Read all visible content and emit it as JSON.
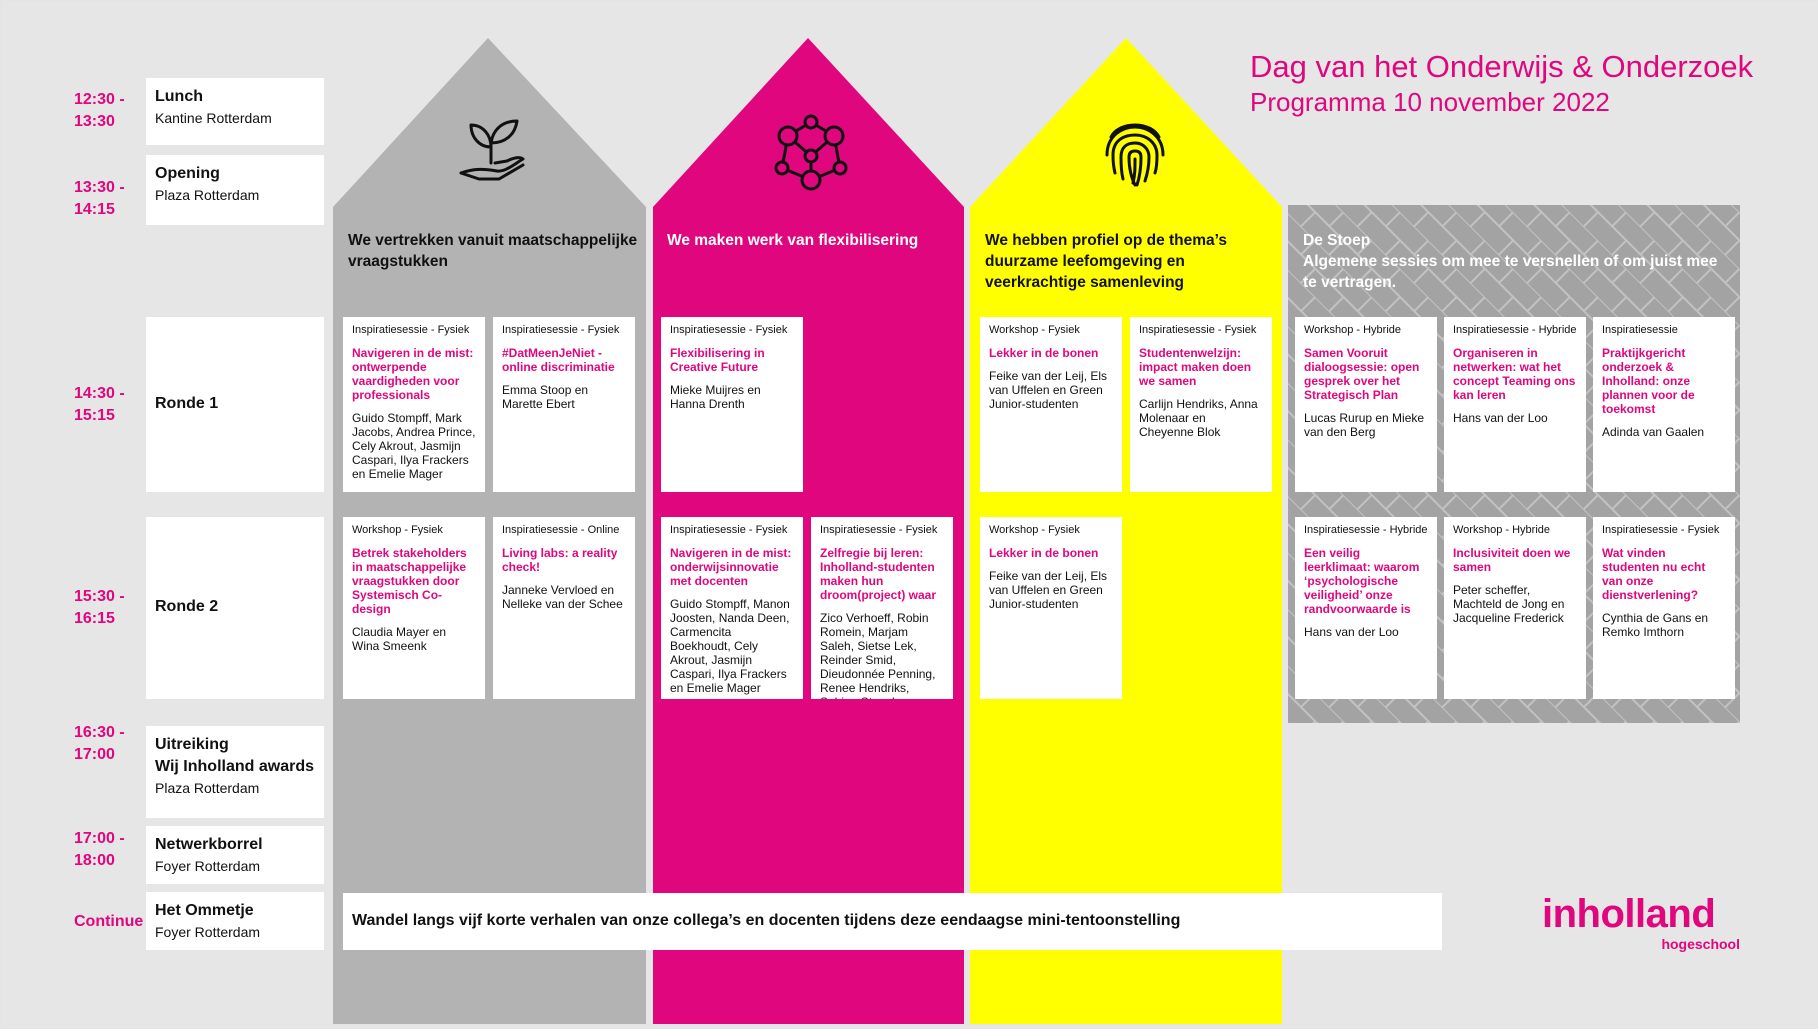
{
  "header": {
    "title": "Dag van het Onderwijs & Onderzoek",
    "subtitle": "Programma 10 november 2022"
  },
  "colors": {
    "magenta": "#e0067e",
    "gray": "#b3b3b3",
    "yellow": "#ffff00",
    "stoep": "#a6a6a6"
  },
  "schedule": [
    {
      "time": "12:30 -\n13:30",
      "title": "Lunch",
      "location": "Kantine Rotterdam"
    },
    {
      "time": "13:30 -\n14:15",
      "title": "Opening",
      "location": "Plaza Rotterdam"
    },
    {
      "time": "14:30 -\n15:15",
      "title": "Ronde 1",
      "location": ""
    },
    {
      "time": "15:30 -\n16:15",
      "title": "Ronde 2",
      "location": ""
    },
    {
      "time": "16:30 -\n17:00",
      "title": "Uitreiking\nWij Inholland awards",
      "location": "Plaza Rotterdam"
    },
    {
      "time": "17:00 -\n18:00",
      "title": "Netwerkborrel",
      "location": "Foyer Rotterdam"
    },
    {
      "time": "Continue",
      "title": "Het Ommetje",
      "location": "Foyer Rotterdam"
    }
  ],
  "columns": [
    {
      "heading": "We vertrekken vanuit maatschappelijke vraagstukken",
      "icon": "plant-hand-icon"
    },
    {
      "heading": "We maken werk van flexibilisering",
      "icon": "network-people-icon"
    },
    {
      "heading": "We hebben profiel op de thema’s duurzame leefomgeving en veerkrachtige samenleving",
      "icon": "fingerprint-icon"
    }
  ],
  "stoep": {
    "title": "De Stoep",
    "subtitle": "Algemene sessies om mee te versnellen  of om juist mee te vertragen."
  },
  "ronde1": [
    {
      "type": "Inspiratiesessie - Fysiek",
      "title": "Navigeren in de mist: ontwerpende vaardigheden voor professionals",
      "speakers": "Guido Stompff, Mark Jacobs, Andrea Prince, Cely Akrout, Jasmijn Caspari, Ilya Frackers en Emelie Mager"
    },
    {
      "type": "Inspiratiesessie - Fysiek",
      "title": "#DatMeenJeNiet - online discriminatie",
      "speakers": "Emma Stoop en Marette Ebert"
    },
    {
      "type": "Inspiratiesessie - Fysiek",
      "title": "Flexibilisering in Creative Future",
      "speakers": "Mieke Muijres en Hanna Drenth"
    },
    {
      "type": "Workshop - Fysiek",
      "title": "Lekker in de bonen",
      "speakers": "Feike van der Leij, Els van Uffelen en Green Junior-studenten"
    },
    {
      "type": "Inspiratiesessie - Fysiek",
      "title": "Studentenwelzijn: impact maken doen we samen",
      "speakers": "Carlijn Hendriks, Anna Molenaar en Cheyenne Blok"
    },
    {
      "type": "Workshop - Hybride",
      "title": "Samen Vooruit dialoogsessie: open gesprek over het Strategisch Plan",
      "speakers": "Lucas Rurup en Mieke van den Berg"
    },
    {
      "type": "Inspiratiesessie - Hybride",
      "title": "Organiseren in netwerken: wat het concept Teaming ons kan leren",
      "speakers": "Hans van der Loo"
    },
    {
      "type": "Inspiratiesessie",
      "title": "Praktijkgericht onderzoek & Inholland: onze plannen voor de toekomst",
      "speakers": "Adinda van Gaalen"
    }
  ],
  "ronde2": [
    {
      "type": "Workshop - Fysiek",
      "title": "Betrek stakeholders in maatschappelijke vraagstukken door Systemisch Co-design",
      "speakers": "Claudia Mayer en Wina Smeenk"
    },
    {
      "type": "Inspiratiesessie - Online",
      "title": "Living labs: a reality check!",
      "speakers": "Janneke Vervloed en Nelleke van der Schee"
    },
    {
      "type": "Inspiratiesessie - Fysiek",
      "title": "Navigeren in de mist: onderwijsinnovatie met docenten",
      "speakers": "Guido Stompff, Manon Joosten, Nanda Deen, Carmencita Boekhoudt, Cely Akrout, Jasmijn Caspari, Ilya Frackers en Emelie Mager"
    },
    {
      "type": "Inspiratiesessie - Fysiek",
      "title": "Zelfregie bij leren: Inholland-studenten maken hun droom(project) waar",
      "speakers": "Zico Verhoeff, Robin Romein, Marjam Saleh, Sietse Lek, Reinder Smid, Dieudonnée Penning, Renee Hendriks, Sabine Stapel"
    },
    {
      "type": "Workshop - Fysiek",
      "title": "Lekker in de bonen",
      "speakers": "Feike van der Leij, Els van Uffelen en Green Junior-studenten"
    },
    {
      "type": "Inspiratiesessie - Hybride",
      "title": "Een veilig leerklimaat: waarom ‘psychologische veiligheid’ onze randvoorwaarde is",
      "speakers": "Hans van der Loo"
    },
    {
      "type": "Workshop - Hybride",
      "title": "Inclusiviteit doen we samen",
      "speakers": "Peter scheffer, Machteld de Jong en Jacqueline Frederick"
    },
    {
      "type": "Inspiratiesessie - Fysiek",
      "title": "Wat vinden studenten nu echt van onze dienstverlening?",
      "speakers": "Cynthia de Gans en Remko Imthorn"
    }
  ],
  "ommetje": {
    "text": "Wandel langs vijf korte verhalen van onze collega’s en docenten tijdens deze eendaagse mini-tentoonstelling"
  },
  "logo": {
    "name": "inholland",
    "sub": "hogeschool"
  }
}
